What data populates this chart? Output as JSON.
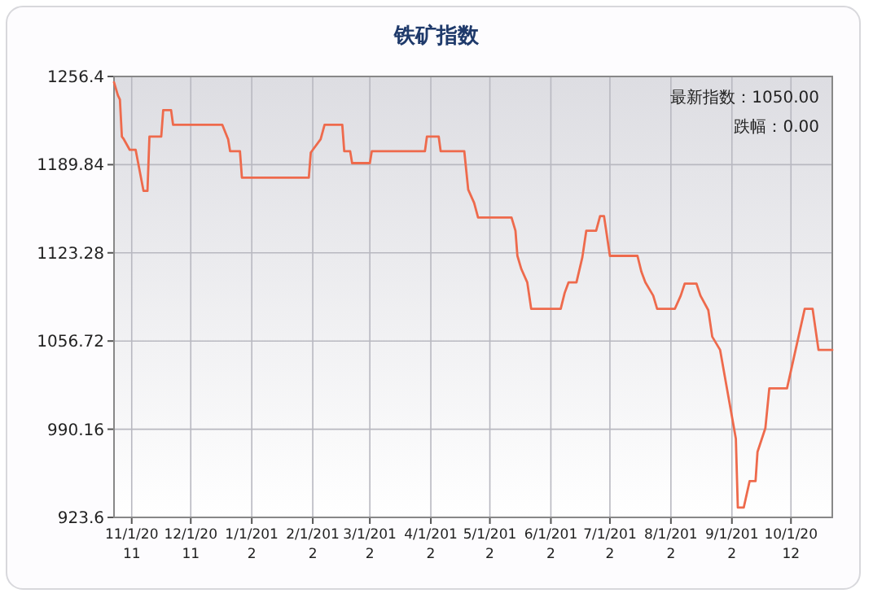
{
  "chart_data": {
    "type": "line",
    "title": "铁矿指数",
    "color": "#ee6a4c",
    "grid": true,
    "annotations": [
      "最新指数：1050.00",
      "跌幅：0.00"
    ],
    "xlim": [
      "2011-10-23",
      "2012-10-22"
    ],
    "ylim": [
      923.6,
      1256.4
    ],
    "yticks": [
      923.6,
      990.16,
      1056.72,
      1123.28,
      1189.84,
      1256.4
    ],
    "xticks": [
      {
        "value": "2011-11-01",
        "label": "11/1/2011"
      },
      {
        "value": "2011-12-01",
        "label": "12/1/2011"
      },
      {
        "value": "2012-01-01",
        "label": "1/1/2012"
      },
      {
        "value": "2012-02-01",
        "label": "2/1/2012"
      },
      {
        "value": "2012-03-01",
        "label": "3/1/2012"
      },
      {
        "value": "2012-04-01",
        "label": "4/1/2012"
      },
      {
        "value": "2012-05-01",
        "label": "5/1/2012"
      },
      {
        "value": "2012-06-01",
        "label": "6/1/2012"
      },
      {
        "value": "2012-07-01",
        "label": "7/1/2012"
      },
      {
        "value": "2012-08-01",
        "label": "8/1/2012"
      },
      {
        "value": "2012-09-01",
        "label": "9/1/2012"
      },
      {
        "value": "2012-10-01",
        "label": "10/1/2012"
      }
    ],
    "x": [
      "2011-10-23",
      "2011-10-25",
      "2011-10-26",
      "2011-10-27",
      "2011-10-28",
      "2011-10-31",
      "2011-11-03",
      "2011-11-07",
      "2011-11-09",
      "2011-11-10",
      "2011-11-16",
      "2011-11-17",
      "2011-11-21",
      "2011-11-22",
      "2011-12-17",
      "2011-12-20",
      "2011-12-21",
      "2011-12-26",
      "2011-12-27",
      "2012-01-30",
      "2012-01-31",
      "2012-02-05",
      "2012-02-07",
      "2012-02-16",
      "2012-02-17",
      "2012-02-20",
      "2012-02-21",
      "2012-03-01",
      "2012-03-02",
      "2012-03-29",
      "2012-03-30",
      "2012-04-05",
      "2012-04-06",
      "2012-04-18",
      "2012-04-20",
      "2012-04-23",
      "2012-04-25",
      "2012-05-12",
      "2012-05-14",
      "2012-05-15",
      "2012-05-17",
      "2012-05-20",
      "2012-05-22",
      "2012-06-06",
      "2012-06-08",
      "2012-06-10",
      "2012-06-14",
      "2012-06-17",
      "2012-06-19",
      "2012-06-24",
      "2012-06-26",
      "2012-06-28",
      "2012-07-01",
      "2012-07-15",
      "2012-07-17",
      "2012-07-19",
      "2012-07-23",
      "2012-07-25",
      "2012-08-03",
      "2012-08-06",
      "2012-08-08",
      "2012-08-14",
      "2012-08-16",
      "2012-08-20",
      "2012-08-22",
      "2012-08-26",
      "2012-09-03",
      "2012-09-04",
      "2012-09-07",
      "2012-09-10",
      "2012-09-13",
      "2012-09-14",
      "2012-09-18",
      "2012-09-20",
      "2012-09-29",
      "2012-10-08",
      "2012-10-12",
      "2012-10-15",
      "2012-10-22"
    ],
    "values": [
      1252,
      1242,
      1239,
      1211,
      1209,
      1201,
      1201,
      1170,
      1170,
      1211,
      1211,
      1231,
      1231,
      1220,
      1220,
      1209,
      1200,
      1200,
      1180,
      1180,
      1199,
      1209,
      1220,
      1220,
      1200,
      1200,
      1191,
      1191,
      1200,
      1200,
      1211,
      1211,
      1200,
      1200,
      1171,
      1161,
      1150,
      1150,
      1140,
      1121,
      1111,
      1101,
      1081,
      1081,
      1093,
      1101,
      1101,
      1120,
      1140,
      1140,
      1151,
      1151,
      1121,
      1121,
      1109,
      1101,
      1091,
      1081,
      1081,
      1091,
      1100,
      1100,
      1091,
      1080,
      1060,
      1050,
      983,
      931,
      931,
      951,
      951,
      973,
      991,
      1021,
      1021,
      1081,
      1081,
      1050,
      1050
    ]
  }
}
